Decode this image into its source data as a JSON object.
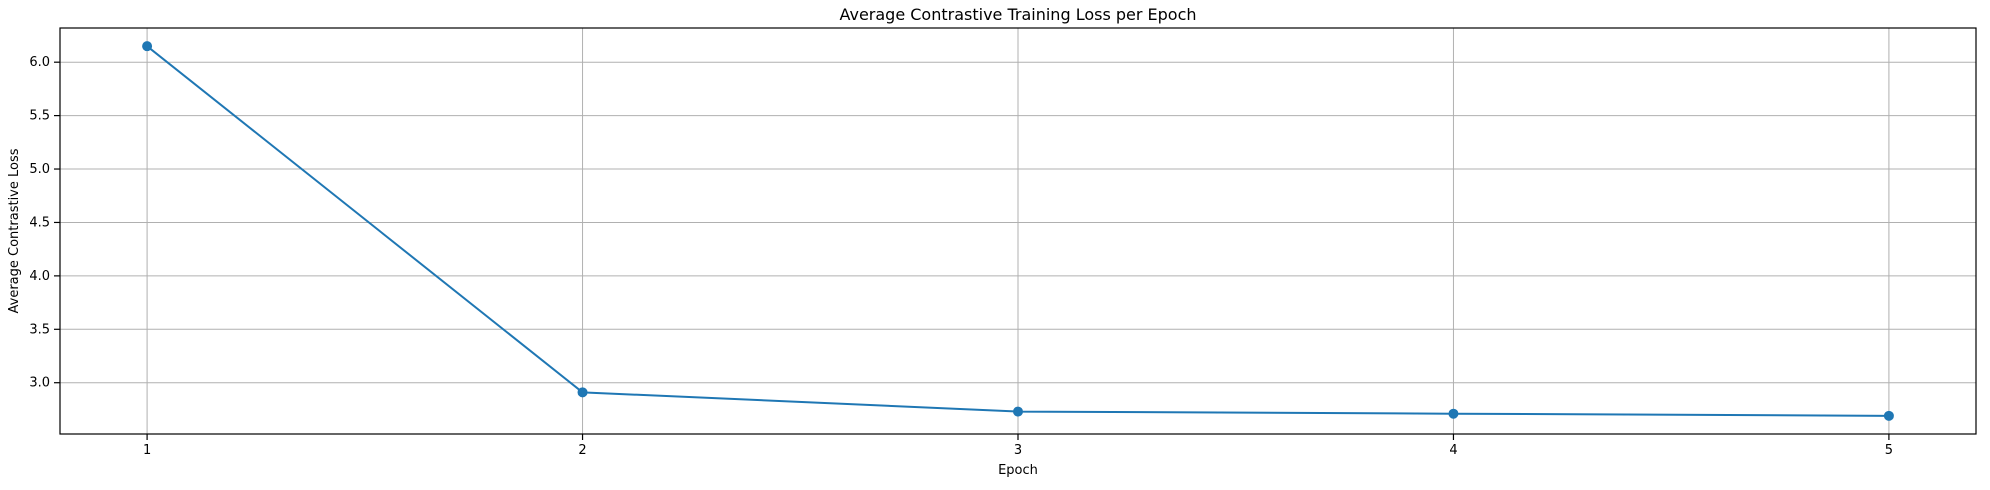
{
  "chart_data": {
    "type": "line",
    "title": "Average Contrastive Training Loss per Epoch",
    "xlabel": "Epoch",
    "ylabel": "Average Contrastive Loss",
    "x": [
      1,
      2,
      3,
      4,
      5
    ],
    "series": [
      {
        "values": [
          6.15,
          2.91,
          2.73,
          2.71,
          2.69
        ],
        "color": "#1f77b4",
        "marker": "circle"
      }
    ],
    "xticks": [
      "1",
      "2",
      "3",
      "4",
      "5"
    ],
    "yticks": [
      "3.0",
      "3.5",
      "4.0",
      "4.5",
      "5.0",
      "5.5",
      "6.0"
    ],
    "xlim": [
      0.8,
      5.2
    ],
    "ylim": [
      2.52,
      6.32
    ],
    "grid": true
  }
}
